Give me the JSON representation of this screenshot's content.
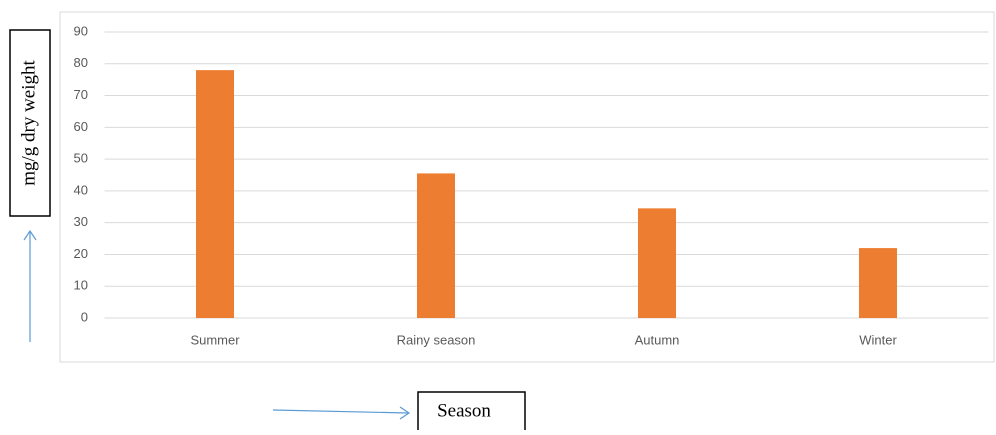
{
  "chart_data": {
    "type": "bar",
    "y_label": "mg/g dry weight",
    "x_label": "Season",
    "categories": [
      "Summer",
      "Rainy season",
      "Autumn",
      "Winter"
    ],
    "values": [
      78,
      45.5,
      34.5,
      22
    ],
    "color": "#ed7d31",
    "ylim": [
      0,
      90
    ],
    "yticks": [
      0,
      10,
      20,
      30,
      40,
      50,
      60,
      70,
      80,
      90
    ],
    "grid": true
  }
}
